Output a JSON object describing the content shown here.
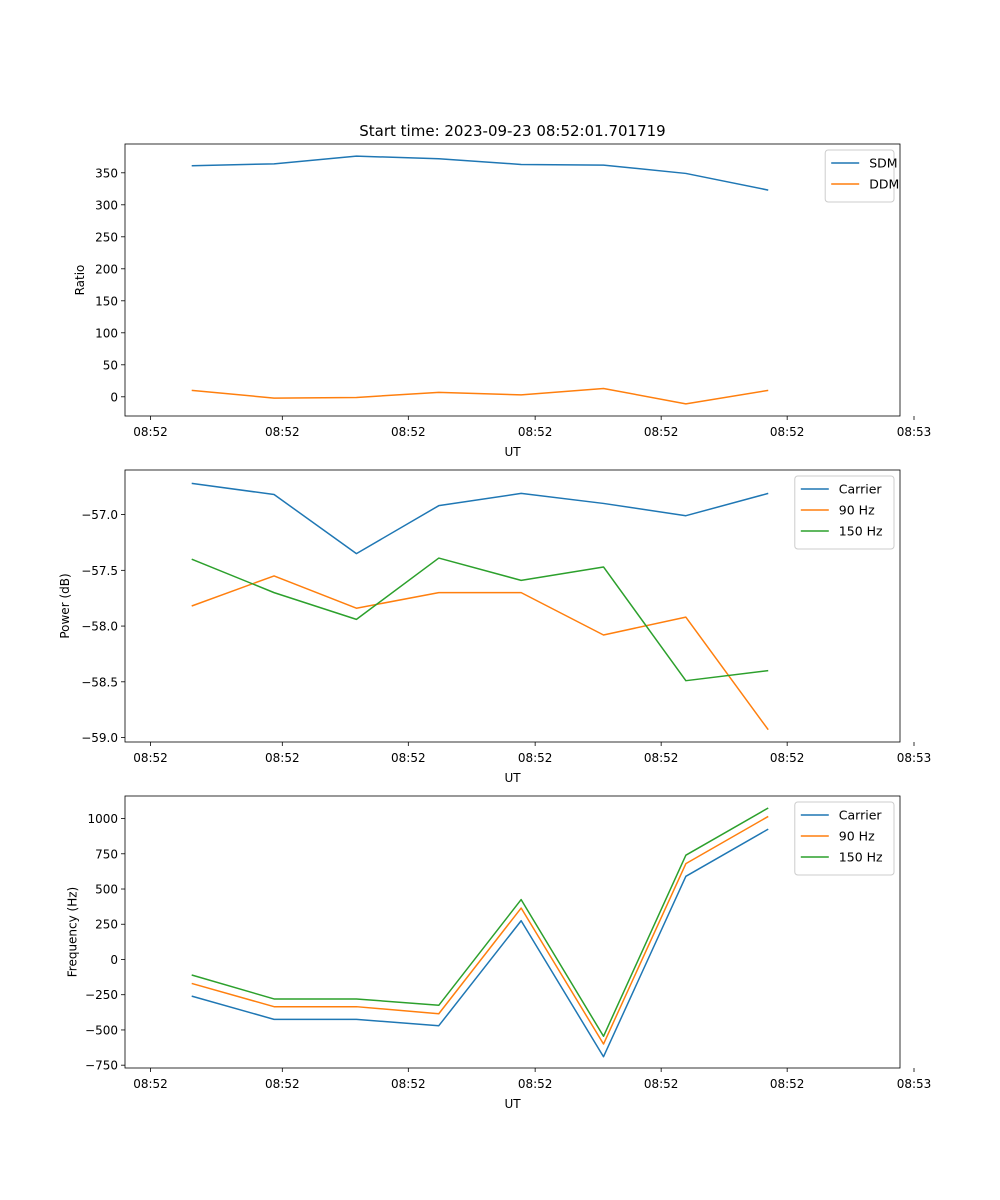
{
  "figure": {
    "title": "Start time: 2023-09-23 08:52:01.701719"
  },
  "colors": {
    "blue": "#1f77b4",
    "orange": "#ff7f0e",
    "green": "#2ca02c"
  },
  "chart_data": [
    {
      "type": "line",
      "title": "Start time: 2023-09-23 08:52:01.701719",
      "xlabel": "UT",
      "ylabel": "Ratio",
      "x": [
        1,
        2,
        3,
        4,
        5,
        6,
        7,
        8
      ],
      "xlim": [
        0.19,
        9.6
      ],
      "x_ticks": [
        0.5,
        2.1,
        3.63,
        5.17,
        6.7,
        8.23,
        9.77
      ],
      "x_tick_labels": [
        "08:52",
        "08:52",
        "08:52",
        "08:52",
        "08:52",
        "08:52",
        "08:53"
      ],
      "ylim": [
        -30,
        395
      ],
      "y_ticks": [
        0,
        50,
        100,
        150,
        200,
        250,
        300,
        350
      ],
      "y_tick_labels": [
        "0",
        "50",
        "100",
        "150",
        "200",
        "250",
        "300",
        "350"
      ],
      "legend": "top-right",
      "series": [
        {
          "name": "SDM",
          "color_key": "blue",
          "values": [
            361,
            364,
            376,
            372,
            363,
            362,
            349,
            323
          ]
        },
        {
          "name": "DDM",
          "color_key": "orange",
          "values": [
            10,
            -2,
            -1,
            7,
            3,
            13,
            -11,
            10
          ]
        }
      ]
    },
    {
      "type": "line",
      "title": "",
      "xlabel": "UT",
      "ylabel": "Power (dB)",
      "x": [
        1,
        2,
        3,
        4,
        5,
        6,
        7,
        8
      ],
      "xlim": [
        0.19,
        9.6
      ],
      "x_ticks": [
        0.5,
        2.1,
        3.63,
        5.17,
        6.7,
        8.23,
        9.77
      ],
      "x_tick_labels": [
        "08:52",
        "08:52",
        "08:52",
        "08:52",
        "08:52",
        "08:52",
        "08:53"
      ],
      "ylim": [
        -59.04,
        -56.6
      ],
      "y_ticks": [
        -57.0,
        -57.5,
        -58.0,
        -58.5,
        -59.0
      ],
      "y_tick_labels": [
        "−57.0",
        "−57.5",
        "−58.0",
        "−58.5",
        "−59.0"
      ],
      "legend": "top-right",
      "series": [
        {
          "name": "Carrier",
          "color_key": "blue",
          "values": [
            -56.72,
            -56.82,
            -57.35,
            -56.92,
            -56.81,
            -56.9,
            -57.01,
            -56.81
          ]
        },
        {
          "name": "90 Hz",
          "color_key": "orange",
          "values": [
            -57.82,
            -57.55,
            -57.84,
            -57.7,
            -57.7,
            -58.08,
            -57.92,
            -58.93
          ]
        },
        {
          "name": "150 Hz",
          "color_key": "green",
          "values": [
            -57.4,
            -57.7,
            -57.94,
            -57.39,
            -57.59,
            -57.47,
            -58.49,
            -58.4
          ]
        }
      ]
    },
    {
      "type": "line",
      "title": "",
      "xlabel": "UT",
      "ylabel": "Frequency (Hz)",
      "x": [
        1,
        2,
        3,
        4,
        5,
        6,
        7,
        8
      ],
      "xlim": [
        0.19,
        9.6
      ],
      "x_ticks": [
        0.5,
        2.1,
        3.63,
        5.17,
        6.7,
        8.23,
        9.77
      ],
      "x_tick_labels": [
        "08:52",
        "08:52",
        "08:52",
        "08:52",
        "08:52",
        "08:52",
        "08:53"
      ],
      "ylim": [
        -770,
        1160
      ],
      "y_ticks": [
        -750,
        -500,
        -250,
        0,
        250,
        500,
        750,
        1000
      ],
      "y_tick_labels": [
        "−750",
        "−500",
        "−250",
        "0",
        "250",
        "500",
        "750",
        "1000"
      ],
      "legend": "top-right",
      "series": [
        {
          "name": "Carrier",
          "color_key": "blue",
          "values": [
            -260,
            -425,
            -425,
            -470,
            275,
            -690,
            590,
            925
          ]
        },
        {
          "name": "90 Hz",
          "color_key": "orange",
          "values": [
            -170,
            -335,
            -335,
            -385,
            365,
            -600,
            680,
            1015
          ]
        },
        {
          "name": "150 Hz",
          "color_key": "green",
          "values": [
            -110,
            -280,
            -280,
            -325,
            425,
            -545,
            740,
            1075
          ]
        }
      ]
    }
  ]
}
